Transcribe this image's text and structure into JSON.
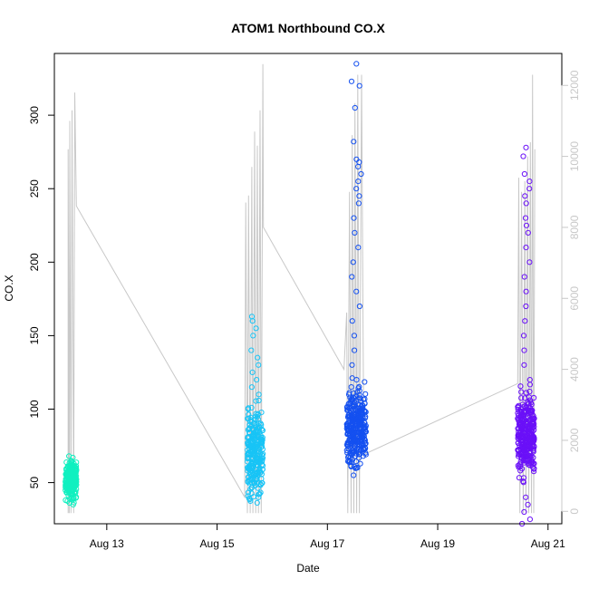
{
  "chart_data": {
    "type": "scatter",
    "title": "ATOM1 Northbound CO.X",
    "xlabel": "Date",
    "ylabel": "CO.X",
    "x_ticks": [
      {
        "day": 13,
        "label": "Aug 13"
      },
      {
        "day": 15,
        "label": "Aug 15"
      },
      {
        "day": 17,
        "label": "Aug 17"
      },
      {
        "day": 19,
        "label": "Aug 19"
      },
      {
        "day": 21,
        "label": "Aug 21"
      }
    ],
    "y_ticks": [
      "50",
      "100",
      "150",
      "200",
      "250",
      "300"
    ],
    "y2_ticks": [
      "0",
      "2000",
      "4000",
      "6000",
      "8000",
      "10000",
      "12000"
    ],
    "xlim": [
      12.05,
      21.25
    ],
    "ylim": [
      22,
      342
    ],
    "y2lim": [
      -350,
      12900
    ],
    "grid": false,
    "left_axis_color": "#000000",
    "right_axis_color": "#c8c8c8",
    "secondary_line_color": "#c8c8c8",
    "series": [
      {
        "color": "#10f0c0",
        "x_range": [
          12.25,
          12.45
        ],
        "y_base": 52,
        "y_spread": 6,
        "y_outliers": [
          35,
          40,
          67,
          68
        ],
        "n": 220
      },
      {
        "color": "#18c4f6",
        "x_range": [
          15.55,
          15.83
        ],
        "y_base": 70,
        "y_spread": 14,
        "y_outliers": [
          110,
          115,
          120,
          125,
          130,
          135,
          140,
          150,
          155,
          160,
          163,
          40,
          42
        ],
        "n": 260
      },
      {
        "color": "#1450f0",
        "x_range": [
          17.35,
          17.7
        ],
        "y_base": 88,
        "y_spread": 12,
        "y_outliers": [
          335,
          323,
          320,
          305,
          282,
          270,
          268,
          265,
          260,
          255,
          250,
          245,
          240,
          230,
          220,
          210,
          200,
          190,
          180,
          170,
          160,
          150,
          140,
          130,
          120,
          55,
          60
        ],
        "n": 320
      },
      {
        "color": "#6a10f8",
        "x_range": [
          20.45,
          20.75
        ],
        "y_base": 82,
        "y_spread": 13,
        "y_outliers": [
          278,
          272,
          260,
          255,
          250,
          245,
          240,
          230,
          225,
          220,
          210,
          200,
          190,
          180,
          170,
          160,
          150,
          140,
          130,
          120,
          22,
          25,
          30,
          35,
          40
        ],
        "n": 320
      }
    ],
    "secondary_series": {
      "description_axis": "right",
      "points": [
        {
          "x": 12.3,
          "y": -50
        },
        {
          "x": 12.3,
          "y": 10200
        },
        {
          "x": 12.32,
          "y": -50
        },
        {
          "x": 12.33,
          "y": 11000
        },
        {
          "x": 12.35,
          "y": -50
        },
        {
          "x": 12.37,
          "y": 11300
        },
        {
          "x": 12.4,
          "y": -50
        },
        {
          "x": 12.42,
          "y": 11800
        },
        {
          "x": 12.45,
          "y": 8600
        },
        {
          "x": 15.5,
          "y": 400
        },
        {
          "x": 15.52,
          "y": 8700
        },
        {
          "x": 15.55,
          "y": -50
        },
        {
          "x": 15.57,
          "y": 8900
        },
        {
          "x": 15.6,
          "y": -50
        },
        {
          "x": 15.63,
          "y": 9700
        },
        {
          "x": 15.65,
          "y": -50
        },
        {
          "x": 15.68,
          "y": 10700
        },
        {
          "x": 15.7,
          "y": -50
        },
        {
          "x": 15.73,
          "y": 10300
        },
        {
          "x": 15.75,
          "y": -50
        },
        {
          "x": 15.78,
          "y": 11300
        },
        {
          "x": 15.8,
          "y": -50
        },
        {
          "x": 15.83,
          "y": 12600
        },
        {
          "x": 15.84,
          "y": 8000
        },
        {
          "x": 17.3,
          "y": 4000
        },
        {
          "x": 17.35,
          "y": 5600
        },
        {
          "x": 17.37,
          "y": -50
        },
        {
          "x": 17.4,
          "y": 9000
        },
        {
          "x": 17.43,
          "y": -50
        },
        {
          "x": 17.45,
          "y": 10600
        },
        {
          "x": 17.48,
          "y": -50
        },
        {
          "x": 17.5,
          "y": 11500
        },
        {
          "x": 17.53,
          "y": -50
        },
        {
          "x": 17.55,
          "y": 12300
        },
        {
          "x": 17.58,
          "y": -50
        },
        {
          "x": 17.62,
          "y": 12300
        },
        {
          "x": 17.66,
          "y": 1600
        },
        {
          "x": 20.45,
          "y": 3600
        },
        {
          "x": 20.47,
          "y": 9400
        },
        {
          "x": 20.49,
          "y": -50
        },
        {
          "x": 20.52,
          "y": 9000
        },
        {
          "x": 20.55,
          "y": -50
        },
        {
          "x": 20.58,
          "y": 9300
        },
        {
          "x": 20.6,
          "y": -50
        },
        {
          "x": 20.63,
          "y": 10000
        },
        {
          "x": 20.65,
          "y": -50
        },
        {
          "x": 20.68,
          "y": 10400
        },
        {
          "x": 20.7,
          "y": -50
        },
        {
          "x": 20.72,
          "y": 12300
        },
        {
          "x": 20.74,
          "y": -50
        },
        {
          "x": 20.76,
          "y": 10200
        }
      ]
    }
  }
}
